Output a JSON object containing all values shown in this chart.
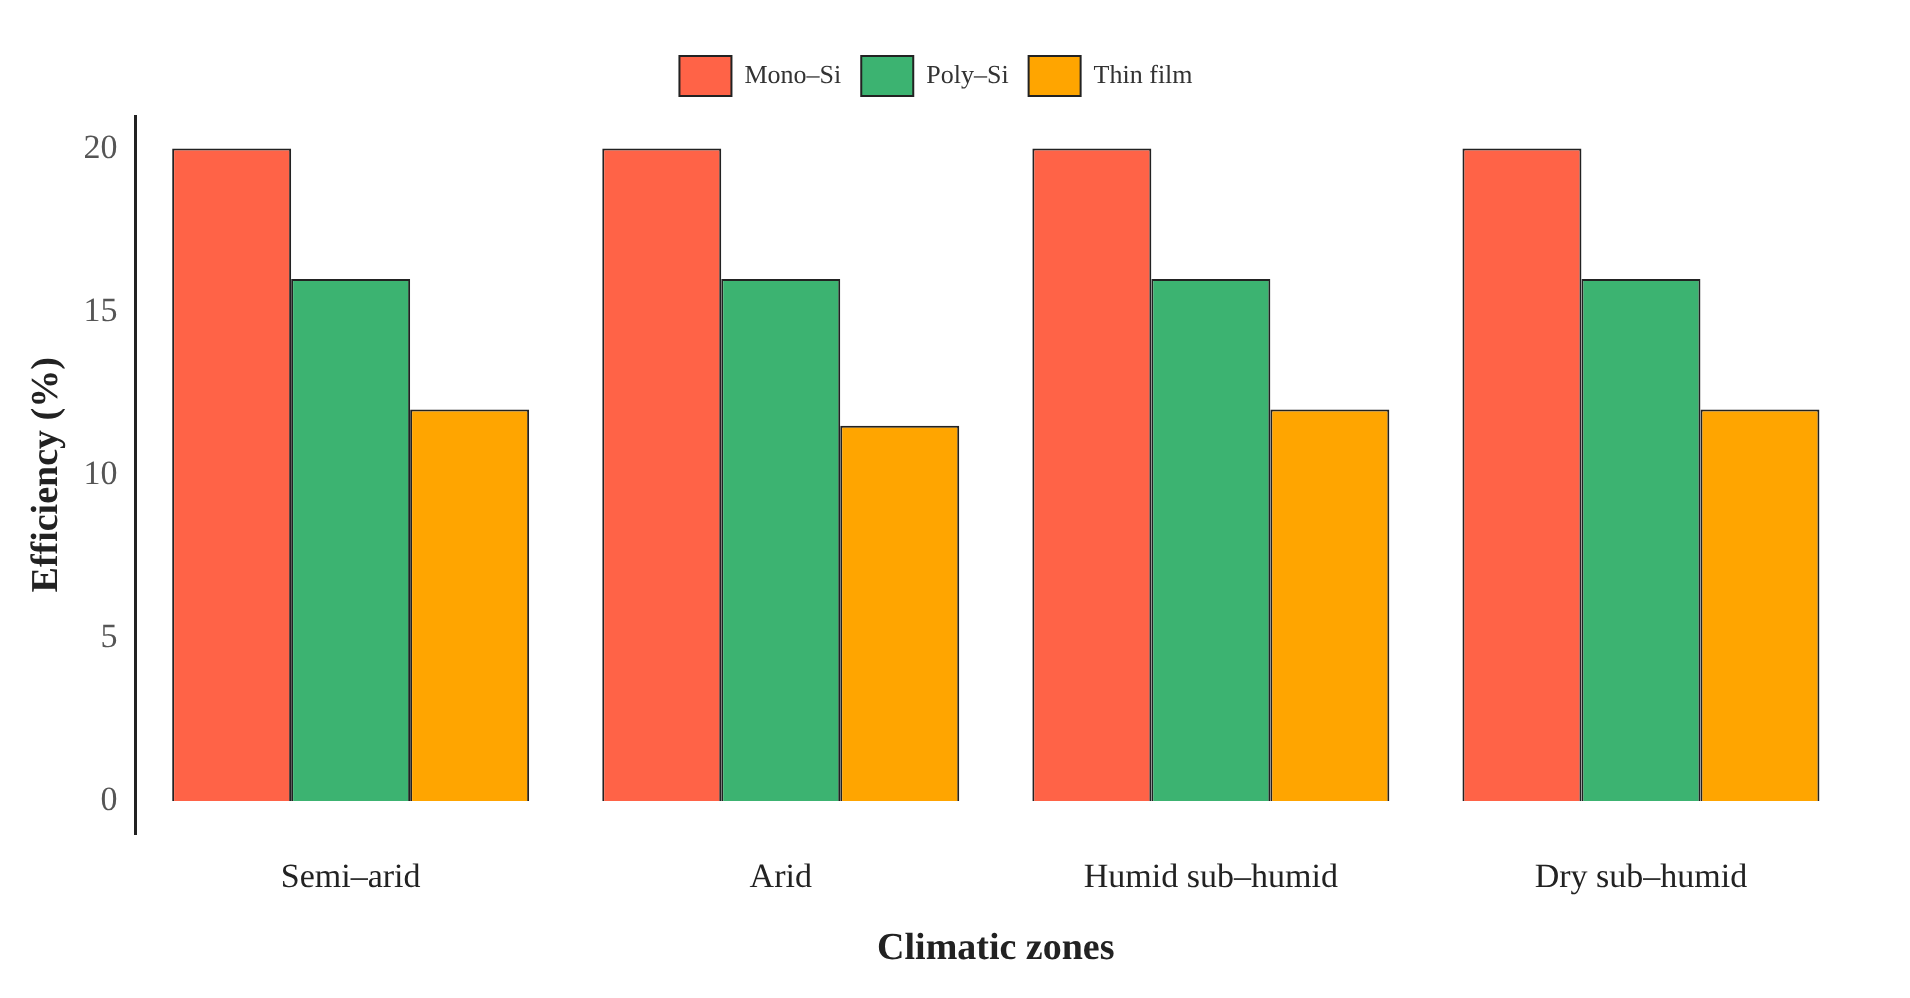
{
  "chart_data": {
    "type": "bar",
    "xlabel": "Climatic zones",
    "ylabel": "Efficiency (%)",
    "categories": [
      "Semi–arid",
      "Arid",
      "Humid sub–humid",
      "Dry sub–humid"
    ],
    "series": [
      {
        "name": "Mono–Si",
        "color": "#ff6347",
        "values": [
          20,
          20,
          20,
          20
        ]
      },
      {
        "name": "Poly–Si",
        "color": "#3cb371",
        "values": [
          16,
          16,
          16,
          16
        ]
      },
      {
        "name": "Thin film",
        "color": "#ffa500",
        "values": [
          12,
          11.5,
          12,
          12
        ]
      }
    ],
    "ylim": [
      -1,
      21
    ],
    "yticks": [
      0,
      5,
      10,
      15,
      20
    ],
    "grid": false,
    "legend": "top"
  }
}
